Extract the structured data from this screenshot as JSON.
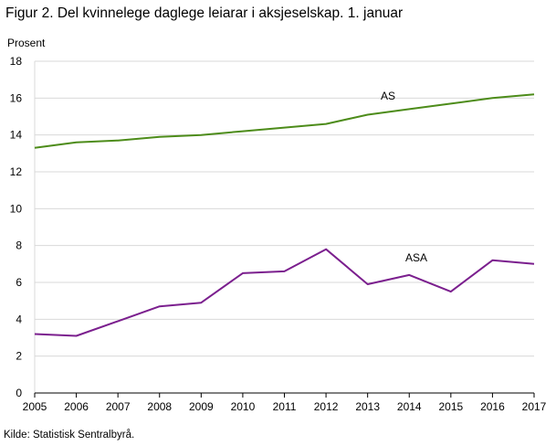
{
  "title": "Figur 2. Del kvinnelege daglege leiarar i aksjeselskap. 1. januar",
  "source": "Kilde: Statistisk Sentralbyrå.",
  "chart_data": {
    "type": "line",
    "title": "Figur 2. Del kvinnelege daglege leiarar i aksjeselskap. 1. januar",
    "xlabel": "",
    "ylabel": "Prosent",
    "x": [
      "2005",
      "2006",
      "2007",
      "2008",
      "2009",
      "2010",
      "2011",
      "2012",
      "2013",
      "2014",
      "2015",
      "2016",
      "2017"
    ],
    "ylim": [
      0,
      18
    ],
    "yticks": [
      0,
      2,
      4,
      6,
      8,
      10,
      12,
      14,
      16,
      18
    ],
    "grid": "horizontal",
    "series": [
      {
        "name": "AS",
        "color": "#4d8c1a",
        "values": [
          13.3,
          13.6,
          13.7,
          13.9,
          14.0,
          14.2,
          14.4,
          14.6,
          15.1,
          15.4,
          15.7,
          16.0,
          16.2
        ]
      },
      {
        "name": "ASA",
        "color": "#7b1f8e",
        "values": [
          3.2,
          3.1,
          3.9,
          4.7,
          4.9,
          6.5,
          6.6,
          7.8,
          5.9,
          6.4,
          5.5,
          7.2,
          7.0
        ]
      }
    ]
  }
}
